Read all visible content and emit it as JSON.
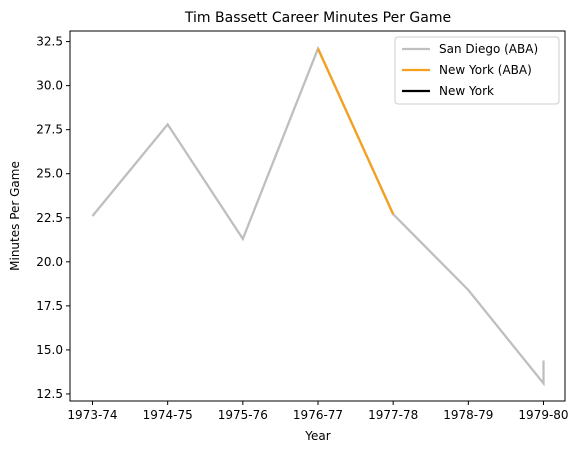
{
  "chart_data": {
    "type": "line",
    "title": "Tim Bassett Career Minutes Per Game",
    "xlabel": "Year",
    "ylabel": "Minutes Per Game",
    "categories": [
      "1973-74",
      "1974-75",
      "1975-76",
      "1976-77",
      "1977-78",
      "1978-79",
      "1979-80"
    ],
    "ylim": [
      12.1,
      33.1
    ],
    "yticks": [
      12.5,
      15.0,
      17.5,
      20.0,
      22.5,
      25.0,
      27.5,
      30.0,
      32.5
    ],
    "ytick_labels": [
      "12.5",
      "15.0",
      "17.5",
      "20.0",
      "22.5",
      "25.0",
      "27.5",
      "30.0",
      "32.5"
    ],
    "grid": false,
    "legend_position": "top-right",
    "series": [
      {
        "name": "San Diego (ABA)",
        "color": "#bfbfbf",
        "points": [
          {
            "x": "1973-74",
            "y": 22.6
          },
          {
            "x": "1974-75",
            "y": 27.8
          },
          {
            "x": "1975-76",
            "y": 21.3
          },
          {
            "x": "1976-77",
            "y": 32.1
          },
          {
            "x": "1977-78",
            "y": 22.7
          },
          {
            "x": "1978-79",
            "y": 18.4
          },
          {
            "x": "1979-80",
            "y": 13.1
          },
          {
            "x": "1979-80",
            "y": 14.4
          }
        ]
      },
      {
        "name": "New York (ABA)",
        "color": "#f5a01e",
        "points": [
          {
            "x": "1976-77",
            "y": 32.1
          },
          {
            "x": "1977-78",
            "y": 22.7
          }
        ]
      },
      {
        "name": "New York",
        "color": "#000000",
        "points": []
      }
    ]
  }
}
